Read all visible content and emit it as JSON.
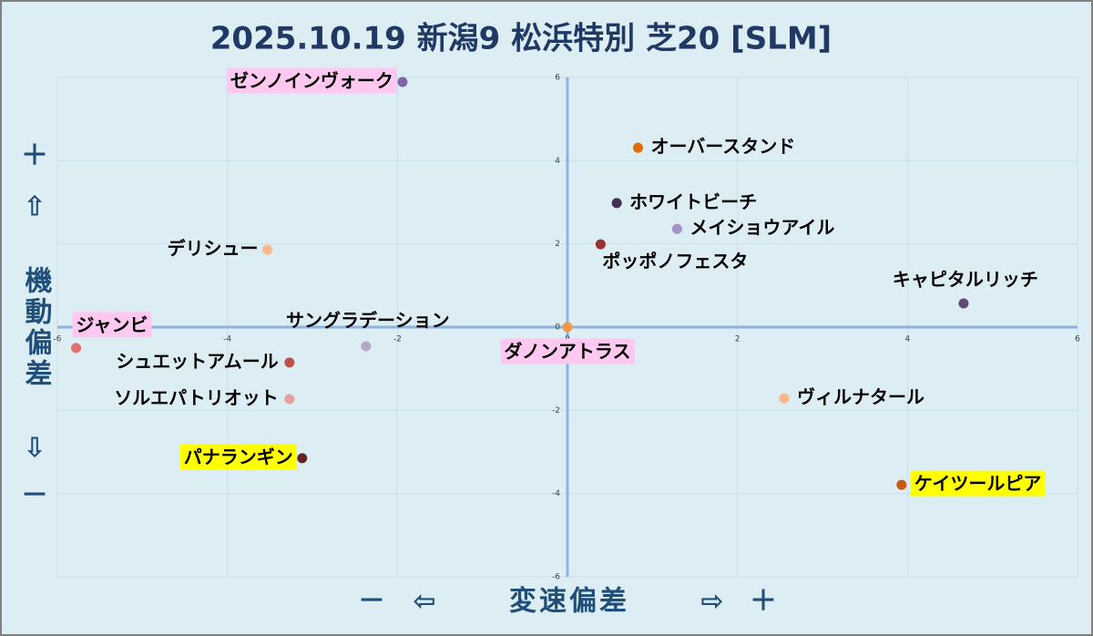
{
  "chart_data": {
    "type": "scatter",
    "title": "2025.10.19 新潟9 松浜特別 芝20 [SLM]",
    "x_axis_label": "変速偏差",
    "y_axis_label": "機動偏差",
    "x_minus": "－",
    "x_minus_arrow": "⇦",
    "x_plus_arrow": "⇨",
    "x_plus": "＋",
    "y_plus": "＋",
    "y_plus_arrow": "⇧",
    "y_minus_arrow": "⇩",
    "y_minus": "－",
    "xlim": [
      -6,
      6
    ],
    "ylim": [
      -6,
      6
    ],
    "xticks": [
      -6,
      -4,
      -2,
      0,
      2,
      4,
      6
    ],
    "yticks": [
      -6,
      -4,
      -2,
      0,
      2,
      4,
      6
    ],
    "grid": true,
    "points": [
      {
        "name": "ゼンノインヴォーク",
        "x": -1.94,
        "y": 5.89,
        "color": "#7f65a8",
        "highlight": "#ffc8f0"
      },
      {
        "name": "オーバースタンド",
        "x": 0.83,
        "y": 4.31,
        "color": "#e36c09"
      },
      {
        "name": "ホワイトビーチ",
        "x": 0.58,
        "y": 2.98,
        "color": "#403152"
      },
      {
        "name": "メイショウアイル",
        "x": 1.29,
        "y": 2.36,
        "color": "#a393c8"
      },
      {
        "name": "ポッポノフェスタ",
        "x": 0.39,
        "y": 1.99,
        "color": "#963232"
      },
      {
        "name": "キャピタルリッチ",
        "x": 4.66,
        "y": 0.57,
        "color": "#5f497a"
      },
      {
        "name": "デリシュー",
        "x": -3.53,
        "y": 1.86,
        "color": "#fab88c"
      },
      {
        "name": "ジャンビ",
        "x": -5.78,
        "y": -0.5,
        "color": "#e07070",
        "highlight": "#ffc8f0"
      },
      {
        "name": "サングラデーション",
        "x": -2.37,
        "y": -0.46,
        "color": "#b4aac8"
      },
      {
        "name": "ダノンアトラス",
        "x": 0,
        "y": 0,
        "color": "#f79646",
        "highlight": "#ffc8f0"
      },
      {
        "name": "シュエットアムール",
        "x": -3.27,
        "y": -0.85,
        "color": "#c0504d"
      },
      {
        "name": "ソルエパトリオット",
        "x": -3.27,
        "y": -1.73,
        "color": "#e6a0a0"
      },
      {
        "name": "パナランギン",
        "x": -3.12,
        "y": -3.15,
        "color": "#632523",
        "highlight": "#ffff00"
      },
      {
        "name": "ヴィルナタール",
        "x": 2.55,
        "y": -1.71,
        "color": "#fab88c"
      },
      {
        "name": "ケイツールピア",
        "x": 3.93,
        "y": -3.79,
        "color": "#c55a11",
        "highlight": "#ffff00"
      }
    ]
  }
}
